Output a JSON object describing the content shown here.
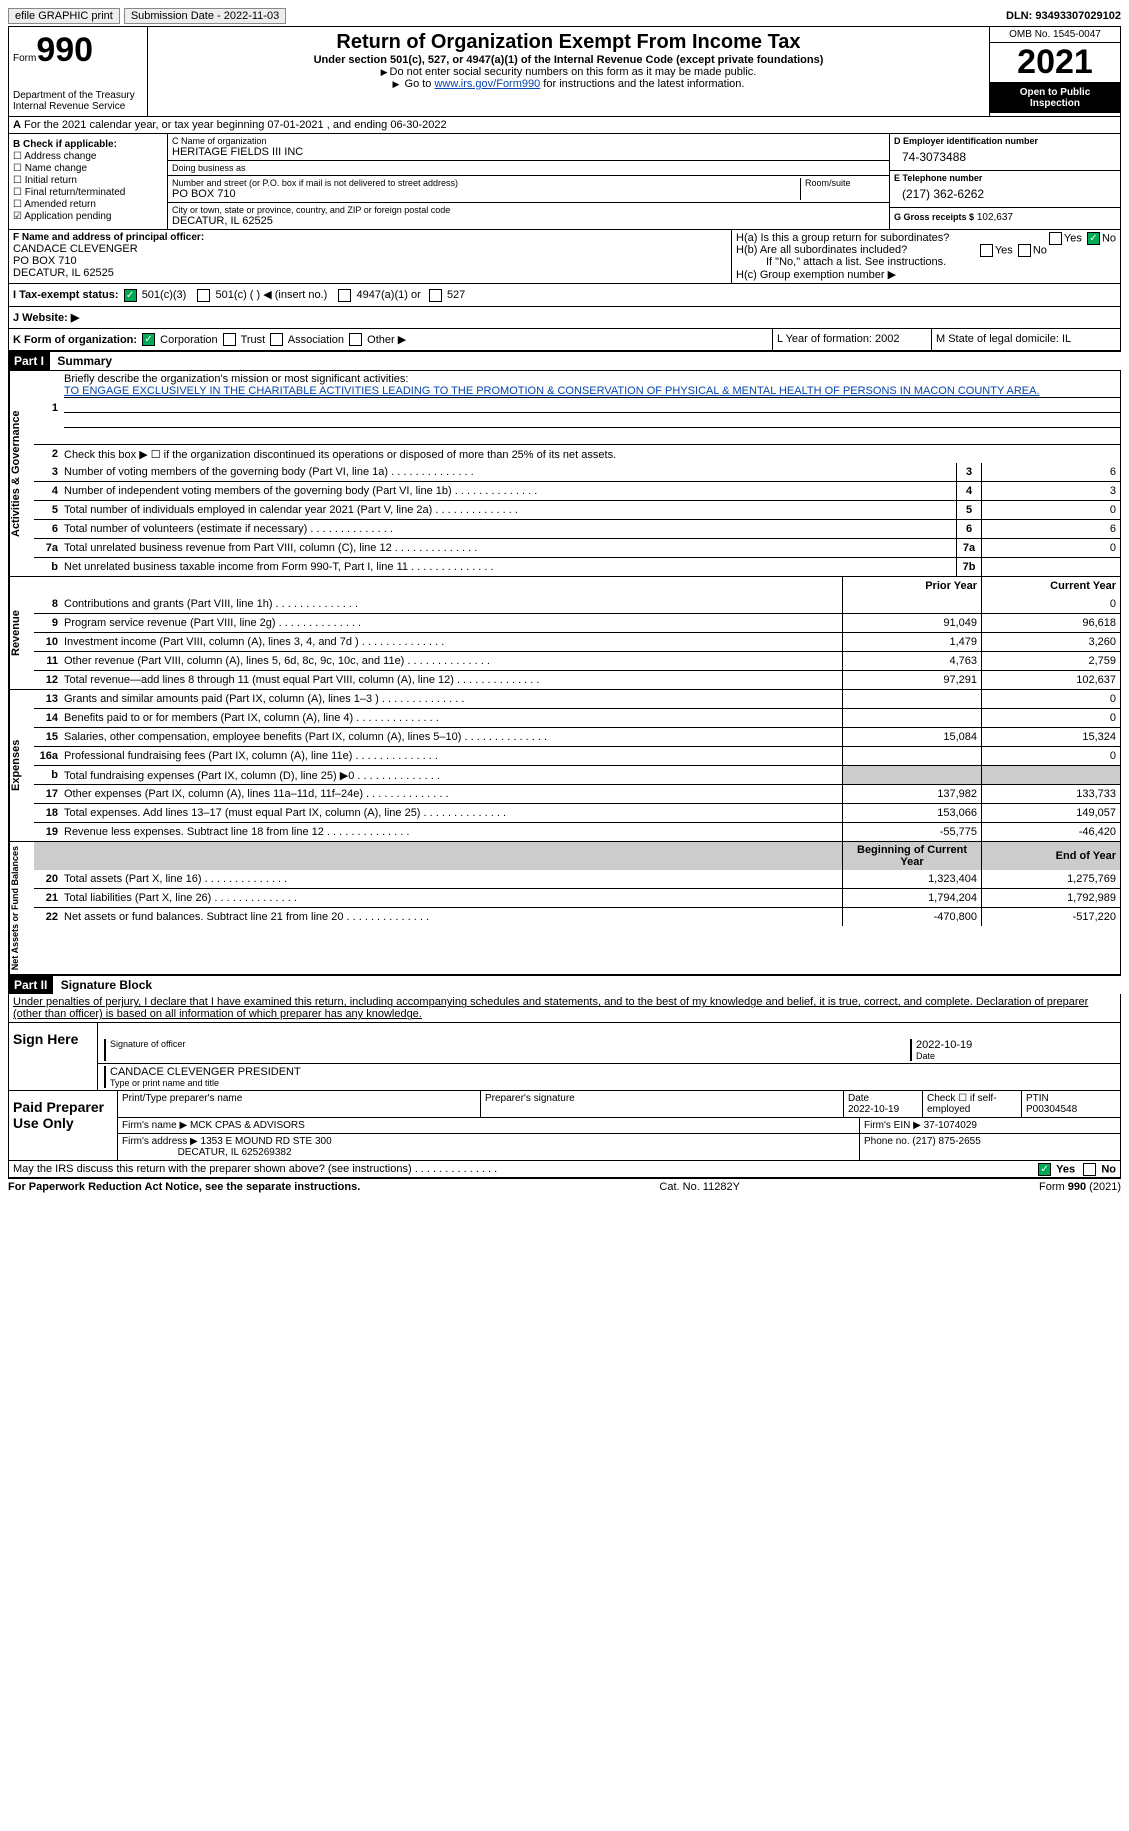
{
  "top": {
    "efile": "efile GRAPHIC print",
    "submission": "Submission Date - 2022-11-03",
    "dln": "DLN: 93493307029102"
  },
  "header": {
    "form_label": "Form",
    "form_num": "990",
    "dept": "Department of the Treasury\nInternal Revenue Service",
    "title": "Return of Organization Exempt From Income Tax",
    "subtitle": "Under section 501(c), 527, or 4947(a)(1) of the Internal Revenue Code (except private foundations)",
    "note1": "Do not enter social security numbers on this form as it may be made public.",
    "note2_pre": "Go to ",
    "note2_link": "www.irs.gov/Form990",
    "note2_post": " for instructions and the latest information.",
    "omb": "OMB No. 1545-0047",
    "year": "2021",
    "open": "Open to Public Inspection"
  },
  "row_a": "For the 2021 calendar year, or tax year beginning 07-01-2021   , and ending 06-30-2022",
  "section_b": {
    "label": "B Check if applicable:",
    "items": [
      "☐ Address change",
      "☐ Name change",
      "☐ Initial return",
      "☐ Final return/terminated",
      "☐ Amended return",
      "☑ Application pending"
    ]
  },
  "section_c": {
    "name_label": "C Name of organization",
    "name": "HERITAGE FIELDS III INC",
    "dba_label": "Doing business as",
    "dba": "",
    "addr_label": "Number and street (or P.O. box if mail is not delivered to street address)",
    "room_label": "Room/suite",
    "addr": "PO BOX 710",
    "city_label": "City or town, state or province, country, and ZIP or foreign postal code",
    "city": "DECATUR, IL  62525"
  },
  "section_d": {
    "ein_label": "D Employer identification number",
    "ein": "74-3073488",
    "phone_label": "E Telephone number",
    "phone": "(217) 362-6262",
    "gross_label": "G Gross receipts $",
    "gross": "102,637"
  },
  "section_f": {
    "label": "F  Name and address of principal officer:",
    "name": "CANDACE CLEVENGER",
    "addr1": "PO BOX 710",
    "addr2": "DECATUR, IL  62525"
  },
  "section_h": {
    "ha": "H(a)  Is this a group return for subordinates?",
    "ha_yes": "Yes",
    "ha_no": "No",
    "hb": "H(b)  Are all subordinates included?",
    "hb_note": "If \"No,\" attach a list. See instructions.",
    "hc": "H(c)  Group exemption number ▶"
  },
  "row_i": {
    "label": "I  Tax-exempt status:",
    "opt1": "501(c)(3)",
    "opt2": "501(c) (  ) ◀ (insert no.)",
    "opt3": "4947(a)(1) or",
    "opt4": "527"
  },
  "row_j": "J  Website: ▶",
  "row_k": "K Form of organization:",
  "row_k_opts": [
    "Corporation",
    "Trust",
    "Association",
    "Other ▶"
  ],
  "row_l": "L Year of formation: 2002",
  "row_m": "M State of legal domicile: IL",
  "part1": {
    "header": "Part I",
    "title": "Summary",
    "line1_label": "Briefly describe the organization's mission or most significant activities:",
    "line1_text": "TO ENGAGE EXCLUSIVELY IN THE CHARITABLE ACTIVITIES LEADING TO THE PROMOTION & CONSERVATION OF PHYSICAL & MENTAL HEALTH OF PERSONS IN MACON COUNTY AREA.",
    "line2": "Check this box ▶ ☐  if the organization discontinued its operations or disposed of more than 25% of its net assets.",
    "lines": [
      {
        "n": "3",
        "text": "Number of voting members of the governing body (Part VI, line 1a)",
        "box": "3",
        "val": "6"
      },
      {
        "n": "4",
        "text": "Number of independent voting members of the governing body (Part VI, line 1b)",
        "box": "4",
        "val": "3"
      },
      {
        "n": "5",
        "text": "Total number of individuals employed in calendar year 2021 (Part V, line 2a)",
        "box": "5",
        "val": "0"
      },
      {
        "n": "6",
        "text": "Total number of volunteers (estimate if necessary)",
        "box": "6",
        "val": "6"
      },
      {
        "n": "7a",
        "text": "Total unrelated business revenue from Part VIII, column (C), line 12",
        "box": "7a",
        "val": "0"
      },
      {
        "n": "b",
        "text": "Net unrelated business taxable income from Form 990-T, Part I, line 11",
        "box": "7b",
        "val": ""
      }
    ],
    "prior_label": "Prior Year",
    "current_label": "Current Year",
    "side_gov": "Activities & Governance",
    "side_rev": "Revenue",
    "side_exp": "Expenses",
    "side_net": "Net Assets or Fund Balances",
    "rev_lines": [
      {
        "n": "8",
        "text": "Contributions and grants (Part VIII, line 1h)",
        "prior": "",
        "cur": "0"
      },
      {
        "n": "9",
        "text": "Program service revenue (Part VIII, line 2g)",
        "prior": "91,049",
        "cur": "96,618"
      },
      {
        "n": "10",
        "text": "Investment income (Part VIII, column (A), lines 3, 4, and 7d )",
        "prior": "1,479",
        "cur": "3,260"
      },
      {
        "n": "11",
        "text": "Other revenue (Part VIII, column (A), lines 5, 6d, 8c, 9c, 10c, and 11e)",
        "prior": "4,763",
        "cur": "2,759"
      },
      {
        "n": "12",
        "text": "Total revenue—add lines 8 through 11 (must equal Part VIII, column (A), line 12)",
        "prior": "97,291",
        "cur": "102,637"
      }
    ],
    "exp_lines": [
      {
        "n": "13",
        "text": "Grants and similar amounts paid (Part IX, column (A), lines 1–3 )",
        "prior": "",
        "cur": "0"
      },
      {
        "n": "14",
        "text": "Benefits paid to or for members (Part IX, column (A), line 4)",
        "prior": "",
        "cur": "0"
      },
      {
        "n": "15",
        "text": "Salaries, other compensation, employee benefits (Part IX, column (A), lines 5–10)",
        "prior": "15,084",
        "cur": "15,324"
      },
      {
        "n": "16a",
        "text": "Professional fundraising fees (Part IX, column (A), line 11e)",
        "prior": "",
        "cur": "0"
      },
      {
        "n": "b",
        "text": "Total fundraising expenses (Part IX, column (D), line 25) ▶0",
        "prior": "grey",
        "cur": "grey"
      },
      {
        "n": "17",
        "text": "Other expenses (Part IX, column (A), lines 11a–11d, 11f–24e)",
        "prior": "137,982",
        "cur": "133,733"
      },
      {
        "n": "18",
        "text": "Total expenses. Add lines 13–17 (must equal Part IX, column (A), line 25)",
        "prior": "153,066",
        "cur": "149,057"
      },
      {
        "n": "19",
        "text": "Revenue less expenses. Subtract line 18 from line 12",
        "prior": "-55,775",
        "cur": "-46,420"
      }
    ],
    "boy_label": "Beginning of Current Year",
    "eoy_label": "End of Year",
    "net_lines": [
      {
        "n": "20",
        "text": "Total assets (Part X, line 16)",
        "prior": "1,323,404",
        "cur": "1,275,769"
      },
      {
        "n": "21",
        "text": "Total liabilities (Part X, line 26)",
        "prior": "1,794,204",
        "cur": "1,792,989"
      },
      {
        "n": "22",
        "text": "Net assets or fund balances. Subtract line 21 from line 20",
        "prior": "-470,800",
        "cur": "-517,220"
      }
    ]
  },
  "part2": {
    "header": "Part II",
    "title": "Signature Block",
    "decl": "Under penalties of perjury, I declare that I have examined this return, including accompanying schedules and statements, and to the best of my knowledge and belief, it is true, correct, and complete. Declaration of preparer (other than officer) is based on all information of which preparer has any knowledge.",
    "sign_here": "Sign Here",
    "sig_label": "Signature of officer",
    "sig_date": "2022-10-19",
    "date_label": "Date",
    "officer": "CANDACE CLEVENGER  PRESIDENT",
    "officer_label": "Type or print name and title",
    "paid": "Paid Preparer Use Only",
    "prep_name_label": "Print/Type preparer's name",
    "prep_sig_label": "Preparer's signature",
    "prep_date_label": "Date",
    "prep_date": "2022-10-19",
    "self_emp": "Check ☐ if self-employed",
    "ptin_label": "PTIN",
    "ptin": "P00304548",
    "firm_name_label": "Firm's name    ▶",
    "firm_name": "MCK CPAS & ADVISORS",
    "firm_ein_label": "Firm's EIN ▶",
    "firm_ein": "37-1074029",
    "firm_addr_label": "Firm's address ▶",
    "firm_addr": "1353 E MOUND RD STE 300",
    "firm_city": "DECATUR, IL  625269382",
    "firm_phone_label": "Phone no.",
    "firm_phone": "(217) 875-2655",
    "discuss": "May the IRS discuss this return with the preparer shown above? (see instructions)",
    "yes": "Yes",
    "no": "No"
  },
  "footer": {
    "left": "For Paperwork Reduction Act Notice, see the separate instructions.",
    "center": "Cat. No. 11282Y",
    "right": "Form 990 (2021)"
  }
}
